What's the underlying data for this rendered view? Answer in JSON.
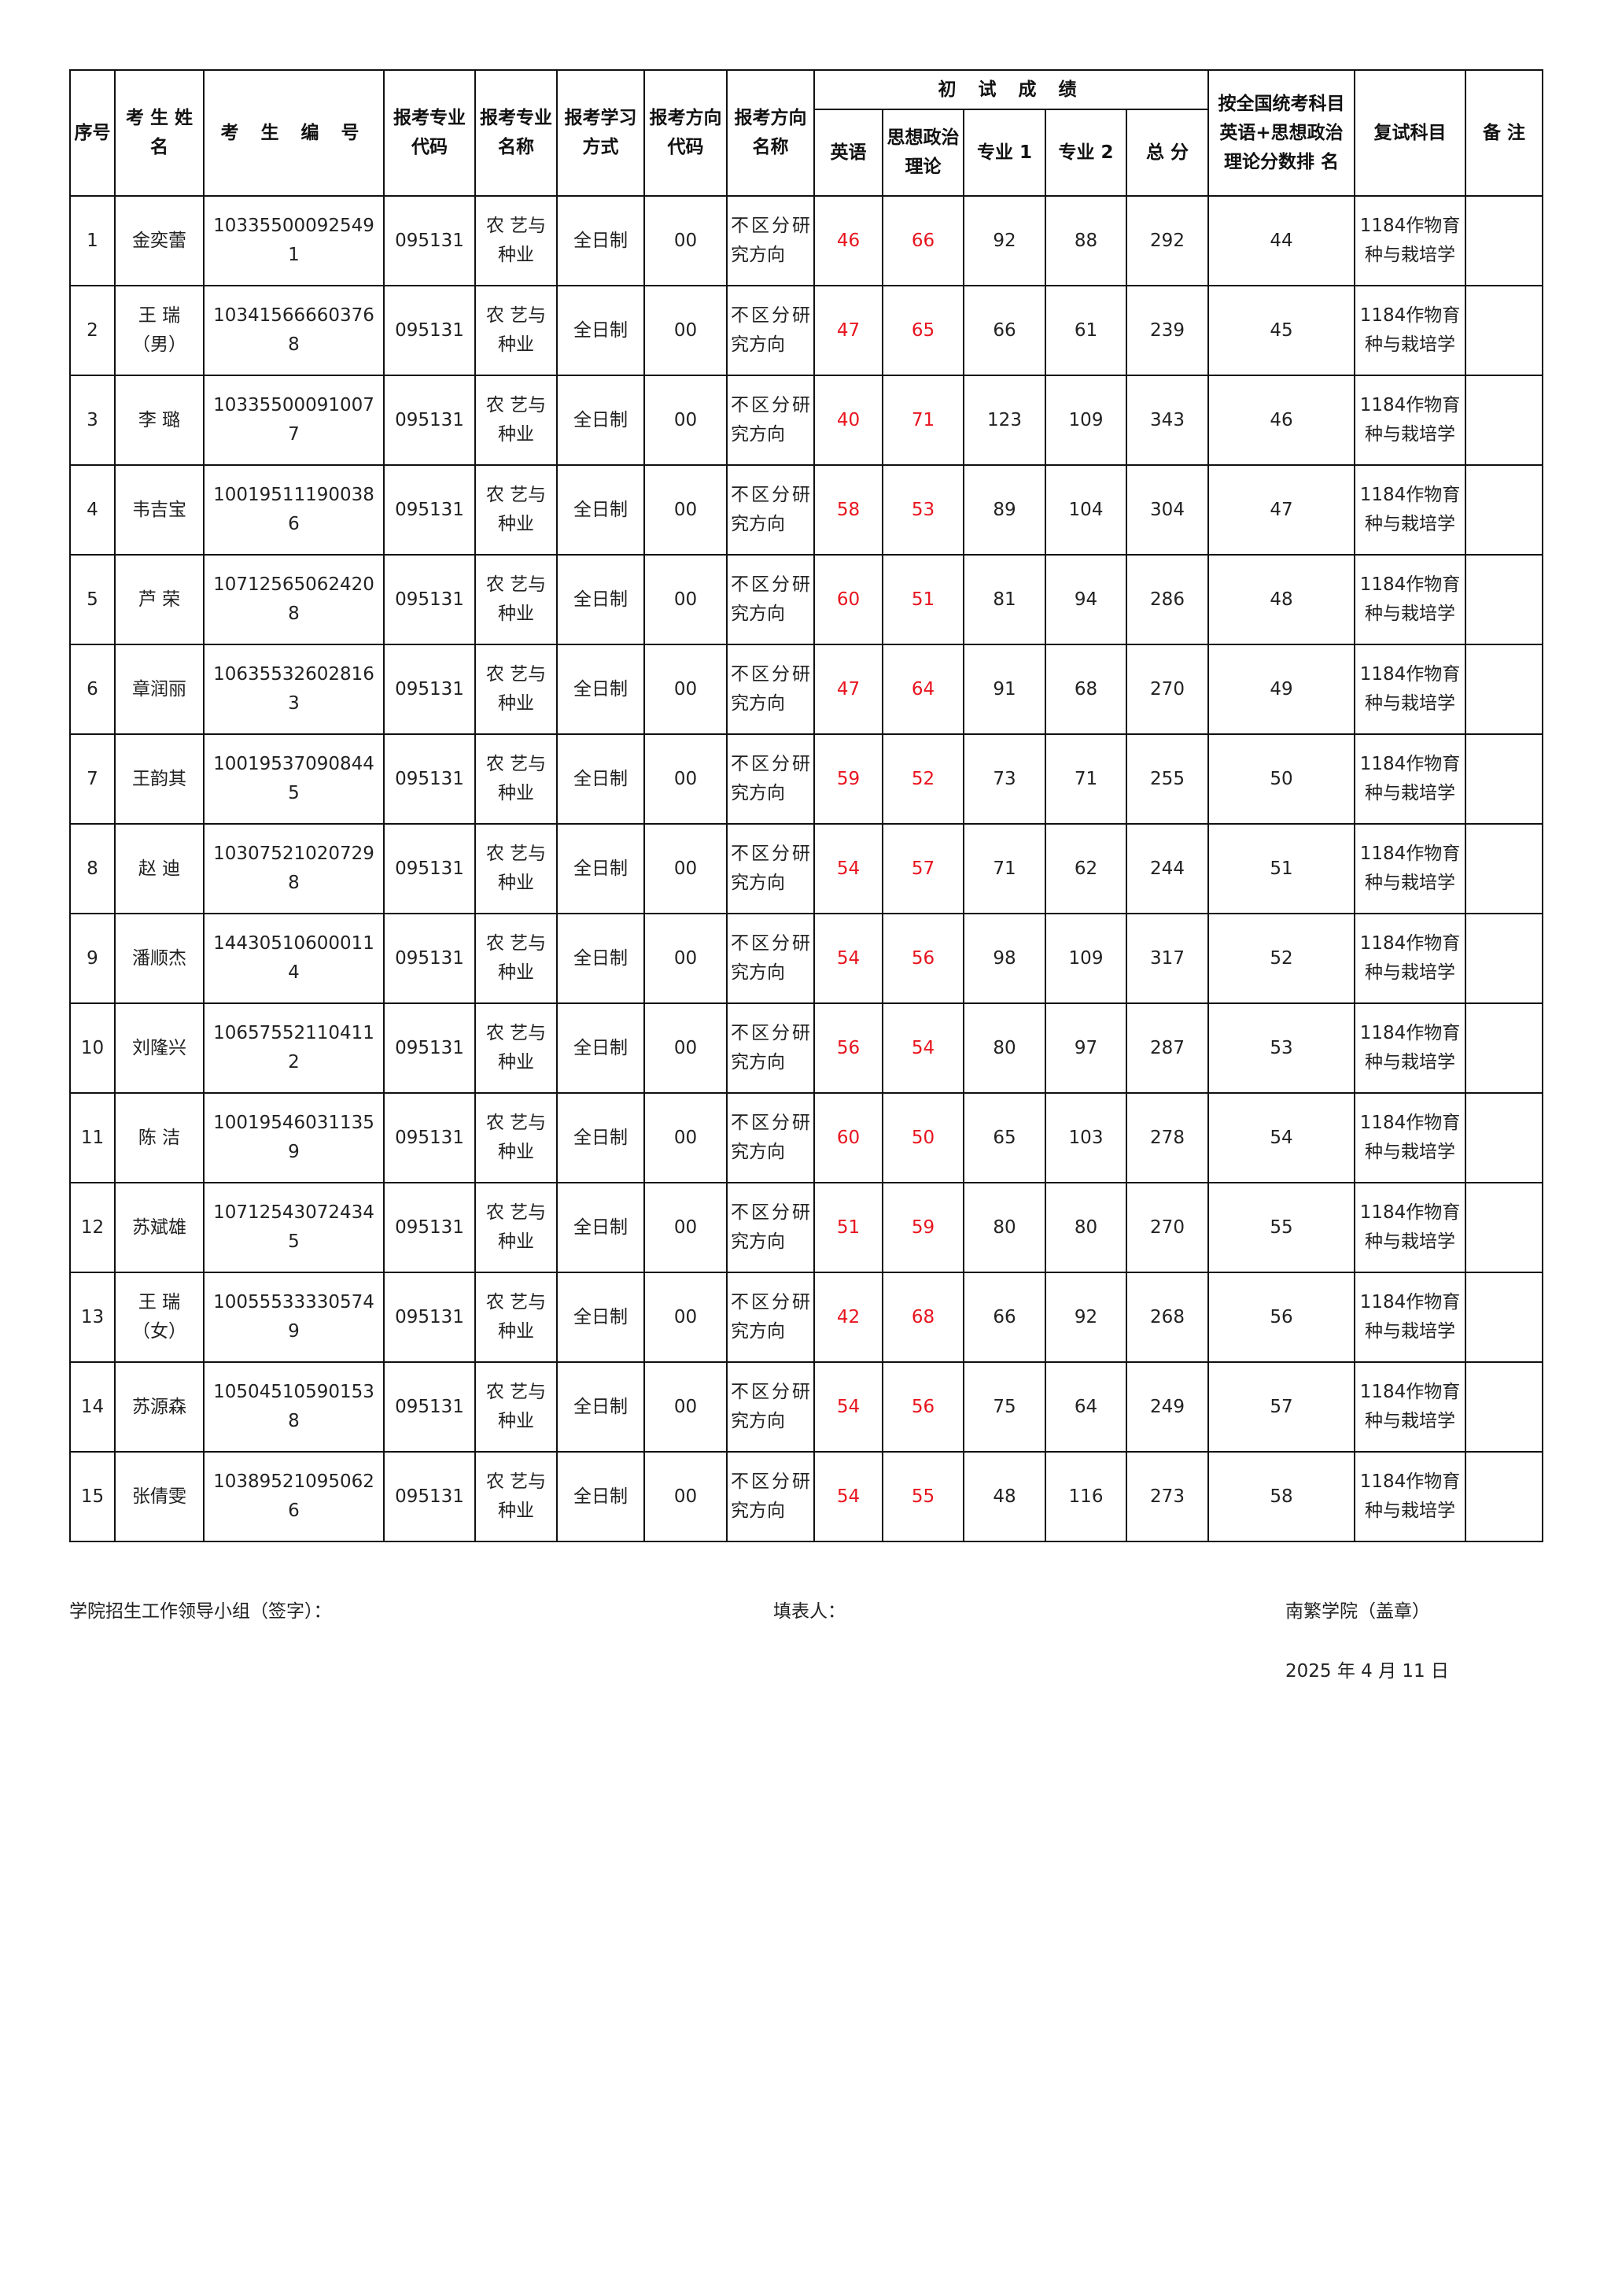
{
  "header": {
    "seq": "序号",
    "name": "考 生 姓 名",
    "exam_id": "考 生 编 号",
    "major_code": "报考专业代码",
    "major_name": "报考专业名称",
    "study_mode": "报考学习方式",
    "dir_code": "报考方向代码",
    "dir_name": "报考方向名称",
    "prelim_group": "初  试  成  绩",
    "english": "英语",
    "politics": "思想政治理论",
    "major1": "专业 1",
    "major2": "专业 2",
    "total": "总 分",
    "rank": "按全国统考科目英语+思想政治理论分数排  名",
    "retest": "复试科目",
    "remark": "备 注"
  },
  "colors": {
    "highlight": "#e8141e",
    "text": "#222222"
  },
  "rows": [
    {
      "seq": "1",
      "name": "金奕蕾",
      "id": "103355000925491",
      "mcode": "095131",
      "mname": "农 艺与种业",
      "mode": "全日制",
      "dcode": "00",
      "dname": "不区分研究方向",
      "en": "46",
      "po": "66",
      "m1": "92",
      "m2": "88",
      "total": "292",
      "rank": "44",
      "retest": "1184作物育种与栽培学",
      "remark": ""
    },
    {
      "seq": "2",
      "name": "王 瑞（男）",
      "id": "103415666603768",
      "mcode": "095131",
      "mname": "农 艺与种业",
      "mode": "全日制",
      "dcode": "00",
      "dname": "不区分研究方向",
      "en": "47",
      "po": "65",
      "m1": "66",
      "m2": "61",
      "total": "239",
      "rank": "45",
      "retest": "1184作物育种与栽培学",
      "remark": ""
    },
    {
      "seq": "3",
      "name": "李 璐",
      "id": "103355000910077",
      "mcode": "095131",
      "mname": "农 艺与种业",
      "mode": "全日制",
      "dcode": "00",
      "dname": "不区分研究方向",
      "en": "40",
      "po": "71",
      "m1": "123",
      "m2": "109",
      "total": "343",
      "rank": "46",
      "retest": "1184作物育种与栽培学",
      "remark": ""
    },
    {
      "seq": "4",
      "name": "韦吉宝",
      "id": "100195111900386",
      "mcode": "095131",
      "mname": "农 艺与种业",
      "mode": "全日制",
      "dcode": "00",
      "dname": "不区分研究方向",
      "en": "58",
      "po": "53",
      "m1": "89",
      "m2": "104",
      "total": "304",
      "rank": "47",
      "retest": "1184作物育种与栽培学",
      "remark": ""
    },
    {
      "seq": "5",
      "name": "芦 荣",
      "id": "107125650624208",
      "mcode": "095131",
      "mname": "农 艺与种业",
      "mode": "全日制",
      "dcode": "00",
      "dname": "不区分研究方向",
      "en": "60",
      "po": "51",
      "m1": "81",
      "m2": "94",
      "total": "286",
      "rank": "48",
      "retest": "1184作物育种与栽培学",
      "remark": ""
    },
    {
      "seq": "6",
      "name": "章润丽",
      "id": "106355326028163",
      "mcode": "095131",
      "mname": "农 艺与种业",
      "mode": "全日制",
      "dcode": "00",
      "dname": "不区分研究方向",
      "en": "47",
      "po": "64",
      "m1": "91",
      "m2": "68",
      "total": "270",
      "rank": "49",
      "retest": "1184作物育种与栽培学",
      "remark": ""
    },
    {
      "seq": "7",
      "name": "王韵其",
      "id": "100195370908445",
      "mcode": "095131",
      "mname": "农 艺与种业",
      "mode": "全日制",
      "dcode": "00",
      "dname": "不区分研究方向",
      "en": "59",
      "po": "52",
      "m1": "73",
      "m2": "71",
      "total": "255",
      "rank": "50",
      "retest": "1184作物育种与栽培学",
      "remark": ""
    },
    {
      "seq": "8",
      "name": "赵 迪",
      "id": "103075210207298",
      "mcode": "095131",
      "mname": "农 艺与种业",
      "mode": "全日制",
      "dcode": "00",
      "dname": "不区分研究方向",
      "en": "54",
      "po": "57",
      "m1": "71",
      "m2": "62",
      "total": "244",
      "rank": "51",
      "retest": "1184作物育种与栽培学",
      "remark": ""
    },
    {
      "seq": "9",
      "name": "潘顺杰",
      "id": "144305106000114",
      "mcode": "095131",
      "mname": "农 艺与种业",
      "mode": "全日制",
      "dcode": "00",
      "dname": "不区分研究方向",
      "en": "54",
      "po": "56",
      "m1": "98",
      "m2": "109",
      "total": "317",
      "rank": "52",
      "retest": "1184作物育种与栽培学",
      "remark": ""
    },
    {
      "seq": "10",
      "name": "刘隆兴",
      "id": "106575521104112",
      "mcode": "095131",
      "mname": "农 艺与种业",
      "mode": "全日制",
      "dcode": "00",
      "dname": "不区分研究方向",
      "en": "56",
      "po": "54",
      "m1": "80",
      "m2": "97",
      "total": "287",
      "rank": "53",
      "retest": "1184作物育种与栽培学",
      "remark": ""
    },
    {
      "seq": "11",
      "name": "陈 洁",
      "id": "100195460311359",
      "mcode": "095131",
      "mname": "农 艺与种业",
      "mode": "全日制",
      "dcode": "00",
      "dname": "不区分研究方向",
      "en": "60",
      "po": "50",
      "m1": "65",
      "m2": "103",
      "total": "278",
      "rank": "54",
      "retest": "1184作物育种与栽培学",
      "remark": ""
    },
    {
      "seq": "12",
      "name": "苏斌雄",
      "id": "107125430724345",
      "mcode": "095131",
      "mname": "农 艺与种业",
      "mode": "全日制",
      "dcode": "00",
      "dname": "不区分研究方向",
      "en": "51",
      "po": "59",
      "m1": "80",
      "m2": "80",
      "total": "270",
      "rank": "55",
      "retest": "1184作物育种与栽培学",
      "remark": ""
    },
    {
      "seq": "13",
      "name": "王 瑞（女）",
      "id": "100555333305749",
      "mcode": "095131",
      "mname": "农 艺与种业",
      "mode": "全日制",
      "dcode": "00",
      "dname": "不区分研究方向",
      "en": "42",
      "po": "68",
      "m1": "66",
      "m2": "92",
      "total": "268",
      "rank": "56",
      "retest": "1184作物育种与栽培学",
      "remark": ""
    },
    {
      "seq": "14",
      "name": "苏源森",
      "id": "105045105901538",
      "mcode": "095131",
      "mname": "农 艺与种业",
      "mode": "全日制",
      "dcode": "00",
      "dname": "不区分研究方向",
      "en": "54",
      "po": "56",
      "m1": "75",
      "m2": "64",
      "total": "249",
      "rank": "57",
      "retest": "1184作物育种与栽培学",
      "remark": ""
    },
    {
      "seq": "15",
      "name": "张倩雯",
      "id": "103895210950626",
      "mcode": "095131",
      "mname": "农 艺与种业",
      "mode": "全日制",
      "dcode": "00",
      "dname": "不区分研究方向",
      "en": "54",
      "po": "55",
      "m1": "48",
      "m2": "116",
      "total": "273",
      "rank": "58",
      "retest": "1184作物育种与栽培学",
      "remark": ""
    }
  ],
  "footer": {
    "committee": "学院招生工作领导小组（签字）：",
    "filler": "填表人：",
    "college": "南繁学院（盖章）",
    "date": "2025 年 4 月 11 日"
  }
}
